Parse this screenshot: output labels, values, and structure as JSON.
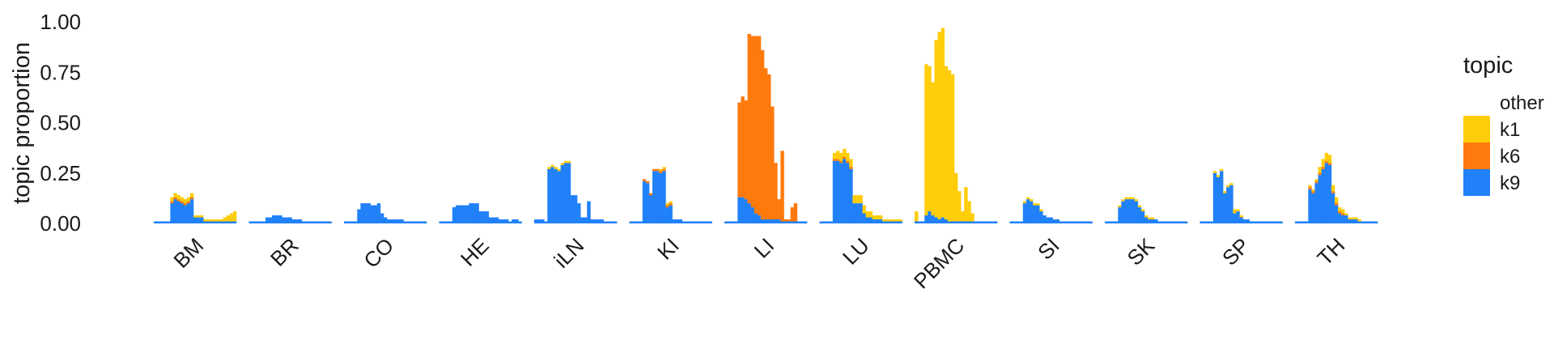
{
  "chart_data": {
    "type": "bar",
    "stacked": true,
    "ylabel": "topic proportion",
    "ylim": [
      0,
      1.0
    ],
    "yticks": [
      "0.00",
      "0.25",
      "0.50",
      "0.75",
      "1.00"
    ],
    "ytick_values": [
      0,
      0.25,
      0.5,
      0.75,
      1.0
    ],
    "grid": false,
    "legend": {
      "title": "topic",
      "placement": "right",
      "entries": [
        {
          "key": "other",
          "label": "other",
          "color": "#ffffff"
        },
        {
          "key": "k1",
          "label": "k1",
          "color": "#FFCD0A"
        },
        {
          "key": "k6",
          "label": "k6",
          "color": "#FF7A0D"
        },
        {
          "key": "k9",
          "label": "k9",
          "color": "#2081F9"
        }
      ]
    },
    "series_order": [
      "k9",
      "k6",
      "k1"
    ],
    "series_colors": {
      "k9": "#2081F9",
      "k6": "#FF7A0D",
      "k1": "#FFCD0A"
    },
    "groups": [
      {
        "name": "BM",
        "k9": [
          0.01,
          0.01,
          0.01,
          0.01,
          0.01,
          0.1,
          0.12,
          0.11,
          0.1,
          0.09,
          0.1,
          0.12,
          0.03,
          0.03,
          0.03,
          0.01,
          0.01,
          0.01,
          0.01,
          0.01,
          0.01,
          0.01,
          0.01,
          0.01,
          0.01
        ],
        "k6": [
          0,
          0,
          0,
          0,
          0,
          0.01,
          0.01,
          0.01,
          0.01,
          0.01,
          0.01,
          0.01,
          0,
          0,
          0,
          0,
          0,
          0,
          0,
          0,
          0,
          0,
          0,
          0,
          0
        ],
        "k1": [
          0,
          0,
          0,
          0,
          0,
          0.02,
          0.02,
          0.02,
          0.02,
          0.02,
          0.02,
          0.02,
          0.01,
          0.01,
          0.01,
          0.01,
          0.01,
          0.01,
          0.01,
          0.01,
          0.01,
          0.02,
          0.03,
          0.04,
          0.05
        ]
      },
      {
        "name": "BR",
        "k9": [
          0.01,
          0.01,
          0.01,
          0.01,
          0.01,
          0.03,
          0.03,
          0.04,
          0.04,
          0.04,
          0.03,
          0.03,
          0.03,
          0.02,
          0.02,
          0.02,
          0.01,
          0.01,
          0.01,
          0.01,
          0.01,
          0.01,
          0.01,
          0.01,
          0.01
        ],
        "k6": [
          0,
          0,
          0,
          0,
          0,
          0,
          0,
          0,
          0,
          0,
          0,
          0,
          0,
          0,
          0,
          0,
          0,
          0,
          0,
          0,
          0,
          0,
          0,
          0,
          0
        ],
        "k1": [
          0,
          0,
          0,
          0,
          0,
          0,
          0,
          0,
          0,
          0,
          0,
          0,
          0,
          0,
          0,
          0,
          0,
          0,
          0,
          0,
          0,
          0,
          0,
          0,
          0
        ]
      },
      {
        "name": "CO",
        "k9": [
          0.01,
          0.01,
          0.01,
          0.01,
          0.07,
          0.1,
          0.1,
          0.1,
          0.09,
          0.09,
          0.1,
          0.05,
          0.03,
          0.02,
          0.02,
          0.02,
          0.02,
          0.02,
          0.01,
          0.01,
          0.01,
          0.01,
          0.01,
          0.01,
          0.01
        ],
        "k6": [
          0,
          0,
          0,
          0,
          0,
          0,
          0,
          0,
          0,
          0,
          0,
          0,
          0,
          0,
          0,
          0,
          0,
          0,
          0,
          0,
          0,
          0,
          0,
          0,
          0
        ],
        "k1": [
          0,
          0,
          0,
          0,
          0,
          0,
          0,
          0,
          0,
          0,
          0,
          0,
          0,
          0,
          0,
          0,
          0,
          0,
          0,
          0,
          0,
          0,
          0,
          0,
          0
        ]
      },
      {
        "name": "HE",
        "k9": [
          0.01,
          0.01,
          0.01,
          0.01,
          0.08,
          0.09,
          0.09,
          0.09,
          0.09,
          0.1,
          0.1,
          0.1,
          0.06,
          0.06,
          0.06,
          0.03,
          0.03,
          0.03,
          0.02,
          0.02,
          0.02,
          0.01,
          0.02,
          0.02,
          0.01
        ],
        "k6": [
          0,
          0,
          0,
          0,
          0,
          0,
          0,
          0,
          0,
          0,
          0,
          0,
          0,
          0,
          0,
          0,
          0,
          0,
          0,
          0,
          0,
          0,
          0,
          0,
          0
        ],
        "k1": [
          0,
          0,
          0,
          0,
          0,
          0,
          0,
          0,
          0,
          0,
          0,
          0,
          0,
          0,
          0,
          0,
          0,
          0,
          0,
          0,
          0,
          0,
          0,
          0,
          0
        ]
      },
      {
        "name": "iLN",
        "k9": [
          0.02,
          0.02,
          0.02,
          0.01,
          0.27,
          0.28,
          0.27,
          0.26,
          0.29,
          0.3,
          0.3,
          0.14,
          0.14,
          0.1,
          0.03,
          0.03,
          0.11,
          0.02,
          0.02,
          0.02,
          0.02,
          0.01,
          0.01,
          0.01,
          0.01
        ],
        "k6": [
          0,
          0,
          0,
          0,
          0,
          0,
          0,
          0,
          0,
          0,
          0,
          0,
          0,
          0,
          0,
          0,
          0,
          0,
          0,
          0,
          0,
          0,
          0,
          0,
          0
        ],
        "k1": [
          0,
          0,
          0,
          0,
          0.01,
          0.01,
          0.01,
          0.01,
          0.01,
          0.01,
          0.01,
          0,
          0,
          0,
          0,
          0,
          0,
          0,
          0,
          0,
          0,
          0,
          0,
          0,
          0
        ]
      },
      {
        "name": "KI",
        "k9": [
          0.01,
          0.01,
          0.01,
          0.01,
          0.21,
          0.2,
          0.14,
          0.26,
          0.26,
          0.25,
          0.26,
          0.08,
          0.09,
          0.02,
          0.02,
          0.02,
          0.01,
          0.01,
          0.01,
          0.01,
          0.01,
          0.01,
          0.01,
          0.01,
          0.01
        ],
        "k6": [
          0,
          0,
          0,
          0,
          0.01,
          0.01,
          0.01,
          0.01,
          0.01,
          0.01,
          0.01,
          0.01,
          0.01,
          0,
          0,
          0,
          0,
          0,
          0,
          0,
          0,
          0,
          0,
          0,
          0
        ],
        "k1": [
          0,
          0,
          0,
          0,
          0,
          0,
          0,
          0,
          0,
          0.01,
          0.01,
          0.01,
          0.01,
          0,
          0,
          0,
          0,
          0,
          0,
          0,
          0,
          0,
          0,
          0,
          0
        ]
      },
      {
        "name": "LI",
        "k9": [
          0.01,
          0.01,
          0.01,
          0.01,
          0.13,
          0.13,
          0.12,
          0.1,
          0.08,
          0.05,
          0.04,
          0.02,
          0.02,
          0.02,
          0.02,
          0.02,
          0.02,
          0.01,
          0.01,
          0.01,
          0.01,
          0.01,
          0.01,
          0.01,
          0.01
        ],
        "k6": [
          0,
          0,
          0,
          0,
          0.47,
          0.5,
          0.49,
          0.84,
          0.85,
          0.88,
          0.89,
          0.84,
          0.75,
          0.72,
          0.56,
          0.28,
          0.1,
          0.35,
          0.01,
          0.01,
          0.07,
          0.09,
          0,
          0,
          0
        ],
        "k1": [
          0,
          0,
          0,
          0,
          0,
          0,
          0,
          0,
          0,
          0,
          0,
          0,
          0,
          0,
          0,
          0,
          0,
          0,
          0,
          0,
          0,
          0,
          0,
          0,
          0
        ]
      },
      {
        "name": "LU",
        "k9": [
          0.01,
          0.01,
          0.01,
          0.01,
          0.31,
          0.31,
          0.3,
          0.32,
          0.3,
          0.27,
          0.1,
          0.1,
          0.1,
          0.05,
          0.03,
          0.03,
          0.02,
          0.02,
          0.02,
          0.01,
          0.01,
          0.01,
          0.01,
          0.01,
          0.01
        ],
        "k6": [
          0,
          0,
          0,
          0,
          0.01,
          0.01,
          0.01,
          0.01,
          0.01,
          0.01,
          0,
          0,
          0,
          0,
          0,
          0,
          0,
          0,
          0,
          0,
          0,
          0,
          0,
          0,
          0
        ],
        "k1": [
          0,
          0,
          0,
          0,
          0.03,
          0.04,
          0.04,
          0.04,
          0.04,
          0.04,
          0.04,
          0.04,
          0.04,
          0.04,
          0.03,
          0.03,
          0.02,
          0.02,
          0.02,
          0.01,
          0.01,
          0.01,
          0.01,
          0.01,
          0.01
        ]
      },
      {
        "name": "PBMC",
        "k9": [
          0.01,
          0.01,
          0.01,
          0.04,
          0.06,
          0.04,
          0.03,
          0.02,
          0.03,
          0.02,
          0.01,
          0.01,
          0.01,
          0.01,
          0.01,
          0.01,
          0.01,
          0.01,
          0.01,
          0.01,
          0.01,
          0.01,
          0.01,
          0.01,
          0.01
        ],
        "k6": [
          0,
          0,
          0,
          0,
          0,
          0,
          0,
          0,
          0,
          0,
          0,
          0,
          0,
          0,
          0,
          0,
          0,
          0,
          0,
          0,
          0,
          0,
          0,
          0,
          0
        ],
        "k1": [
          0.05,
          0,
          0,
          0.75,
          0.72,
          0.66,
          0.88,
          0.93,
          0.94,
          0.76,
          0.75,
          0.73,
          0.24,
          0.15,
          0.05,
          0.17,
          0.1,
          0.04,
          0,
          0,
          0,
          0,
          0,
          0,
          0
        ]
      },
      {
        "name": "SI",
        "k9": [
          0.01,
          0.01,
          0.01,
          0.01,
          0.1,
          0.12,
          0.11,
          0.09,
          0.09,
          0.06,
          0.04,
          0.03,
          0.03,
          0.02,
          0.02,
          0.01,
          0.01,
          0.01,
          0.01,
          0.01,
          0.01,
          0.01,
          0.01,
          0.01,
          0.01
        ],
        "k6": [
          0,
          0,
          0,
          0,
          0,
          0,
          0,
          0,
          0,
          0,
          0,
          0,
          0,
          0,
          0,
          0,
          0,
          0,
          0,
          0,
          0,
          0,
          0,
          0,
          0
        ],
        "k1": [
          0,
          0,
          0,
          0,
          0.01,
          0.01,
          0.01,
          0.01,
          0.01,
          0.01,
          0,
          0,
          0,
          0,
          0,
          0,
          0,
          0,
          0,
          0,
          0,
          0,
          0,
          0,
          0
        ]
      },
      {
        "name": "SK",
        "k9": [
          0.01,
          0.01,
          0.01,
          0.01,
          0.08,
          0.11,
          0.12,
          0.12,
          0.12,
          0.11,
          0.08,
          0.06,
          0.03,
          0.02,
          0.02,
          0.02,
          0.01,
          0.01,
          0.01,
          0.01,
          0.01,
          0.01,
          0.01,
          0.01,
          0.01
        ],
        "k6": [
          0,
          0,
          0,
          0,
          0,
          0,
          0,
          0,
          0,
          0,
          0,
          0,
          0,
          0,
          0,
          0,
          0,
          0,
          0,
          0,
          0,
          0,
          0,
          0,
          0
        ],
        "k1": [
          0,
          0,
          0,
          0,
          0.01,
          0.01,
          0.01,
          0.01,
          0.01,
          0.01,
          0.01,
          0.01,
          0.01,
          0.01,
          0.01,
          0,
          0,
          0,
          0,
          0,
          0,
          0,
          0,
          0,
          0
        ]
      },
      {
        "name": "SP",
        "k9": [
          0.01,
          0.01,
          0.01,
          0.01,
          0.25,
          0.23,
          0.26,
          0.15,
          0.18,
          0.19,
          0.05,
          0.06,
          0.03,
          0.02,
          0.02,
          0.01,
          0.01,
          0.01,
          0.01,
          0.01,
          0.01,
          0.01,
          0.01,
          0.01,
          0.01
        ],
        "k6": [
          0,
          0,
          0,
          0,
          0,
          0,
          0,
          0,
          0,
          0,
          0,
          0,
          0,
          0,
          0,
          0,
          0,
          0,
          0,
          0,
          0,
          0,
          0,
          0,
          0
        ],
        "k1": [
          0,
          0,
          0,
          0,
          0.01,
          0.01,
          0.01,
          0.01,
          0.01,
          0.01,
          0.02,
          0.01,
          0.01,
          0,
          0,
          0,
          0,
          0,
          0,
          0,
          0,
          0,
          0,
          0,
          0
        ]
      },
      {
        "name": "TH",
        "k9": [
          0.01,
          0.01,
          0.01,
          0.01,
          0.17,
          0.15,
          0.2,
          0.24,
          0.27,
          0.3,
          0.29,
          0.15,
          0.09,
          0.05,
          0.04,
          0.04,
          0.02,
          0.02,
          0.02,
          0.01,
          0.01,
          0.01,
          0.01,
          0.01,
          0.01
        ],
        "k6": [
          0,
          0,
          0,
          0,
          0.01,
          0.01,
          0.01,
          0.01,
          0.01,
          0.01,
          0.01,
          0.01,
          0.01,
          0.01,
          0.01,
          0,
          0,
          0,
          0,
          0,
          0,
          0,
          0,
          0,
          0
        ],
        "k1": [
          0,
          0,
          0,
          0,
          0.01,
          0.01,
          0.01,
          0.03,
          0.04,
          0.04,
          0.04,
          0.03,
          0.03,
          0.02,
          0.02,
          0.01,
          0.01,
          0.01,
          0.01,
          0.01,
          0,
          0,
          0,
          0,
          0
        ]
      }
    ]
  }
}
